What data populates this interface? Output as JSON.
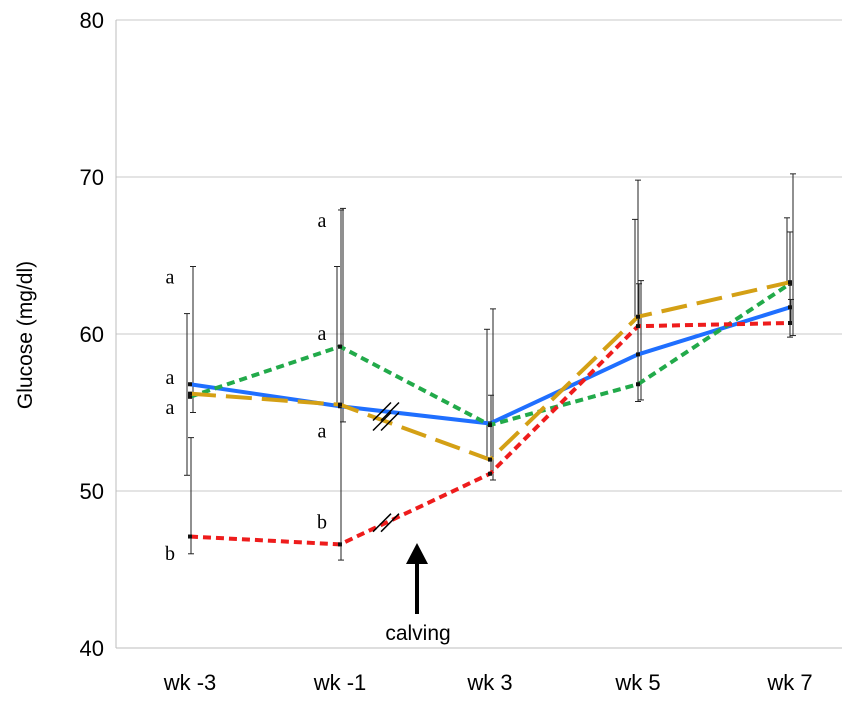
{
  "chart_data": {
    "type": "line",
    "ylabel": "Glucose (mg/dl)",
    "xlabel": "",
    "ylim": [
      40,
      80
    ],
    "yticks": [
      40,
      50,
      60,
      70,
      80
    ],
    "grid": "horizontal",
    "categories": [
      "wk -3",
      "wk -1",
      "wk 3",
      "wk 5",
      "wk 7"
    ],
    "series": [
      {
        "color": "#1f6fff",
        "style": "solid",
        "values": [
          56.8,
          55.4,
          54.3,
          58.7,
          61.7
        ],
        "error": [
          null,
          null,
          null,
          [
            55.7,
            69.8
          ],
          [
            59.8,
            66.5
          ]
        ]
      },
      {
        "color": "#22aa4a",
        "style": "short-dash",
        "values": [
          56.0,
          59.2,
          54.2,
          56.8,
          63.2
        ],
        "error": [
          [
            55.0,
            64.3
          ],
          [
            54.4,
            68.0
          ],
          [
            50.7,
            61.6
          ],
          [
            55.8,
            63.4
          ],
          [
            59.9,
            70.2
          ]
        ]
      },
      {
        "color": "#d4a015",
        "style": "long-dash",
        "values": [
          56.2,
          55.5,
          52.0,
          61.1,
          63.3
        ],
        "error": [
          [
            51.0,
            61.3
          ],
          [
            null,
            64.3
          ],
          [
            null,
            60.3
          ],
          [
            null,
            67.3
          ],
          [
            null,
            67.4
          ]
        ]
      },
      {
        "color": "#ee1c1c",
        "style": "short-dash",
        "values": [
          47.1,
          46.6,
          51.1,
          60.5,
          60.7
        ],
        "error": [
          [
            46.0,
            53.4
          ],
          [
            45.6,
            67.9
          ],
          [
            null,
            56.1
          ],
          [
            null,
            63.2
          ],
          [
            null,
            62.2
          ]
        ]
      }
    ],
    "significance_letters": [
      {
        "category": "wk -3",
        "text": "a",
        "y": 63.6
      },
      {
        "category": "wk -3",
        "text": "a",
        "y": 57.2
      },
      {
        "category": "wk -3",
        "text": "a",
        "y": 55.3
      },
      {
        "category": "wk -3",
        "text": "b",
        "y": 46.0
      },
      {
        "category": "wk -1",
        "text": "a",
        "y": 67.2
      },
      {
        "category": "wk -1",
        "text": "a",
        "y": 60.0
      },
      {
        "category": "wk -1",
        "text": "a",
        "y": 53.8
      },
      {
        "category": "wk -1",
        "text": "b",
        "y": 48.0
      }
    ],
    "annotation": {
      "text": "calving",
      "position": "between wk -1 and wk 3"
    },
    "axis_break_marks": true
  }
}
